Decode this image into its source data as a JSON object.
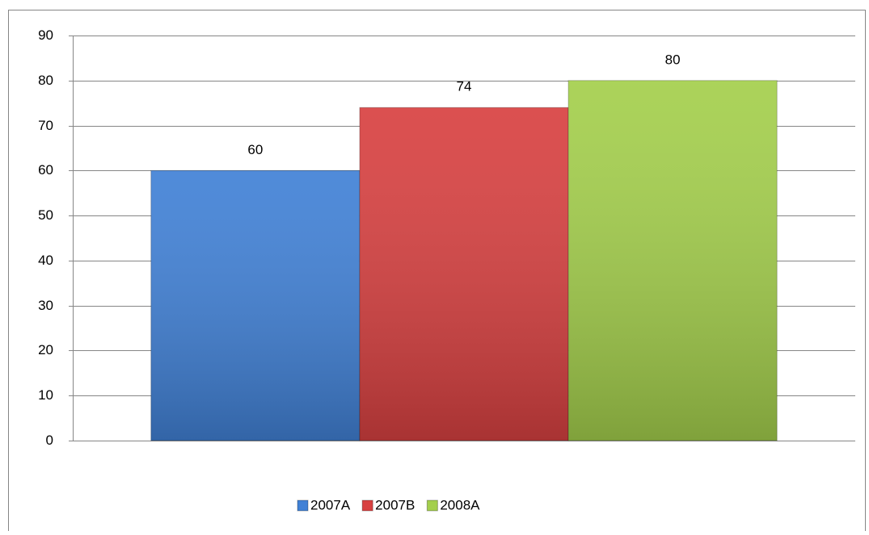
{
  "chart_data": {
    "type": "bar",
    "categories": [
      null
    ],
    "series": [
      {
        "name": "2007A",
        "color": "#4181d6",
        "values": [
          60
        ]
      },
      {
        "name": "2007B",
        "color": "#d84141",
        "values": [
          74
        ]
      },
      {
        "name": "2008A",
        "color": "#a4cf4c",
        "values": [
          80
        ]
      }
    ],
    "ylim": [
      0,
      90
    ],
    "yticks": [
      0,
      10,
      20,
      30,
      40,
      50,
      60,
      70,
      80,
      90
    ],
    "grid": true,
    "legend": "bottom",
    "data_labels": true
  }
}
